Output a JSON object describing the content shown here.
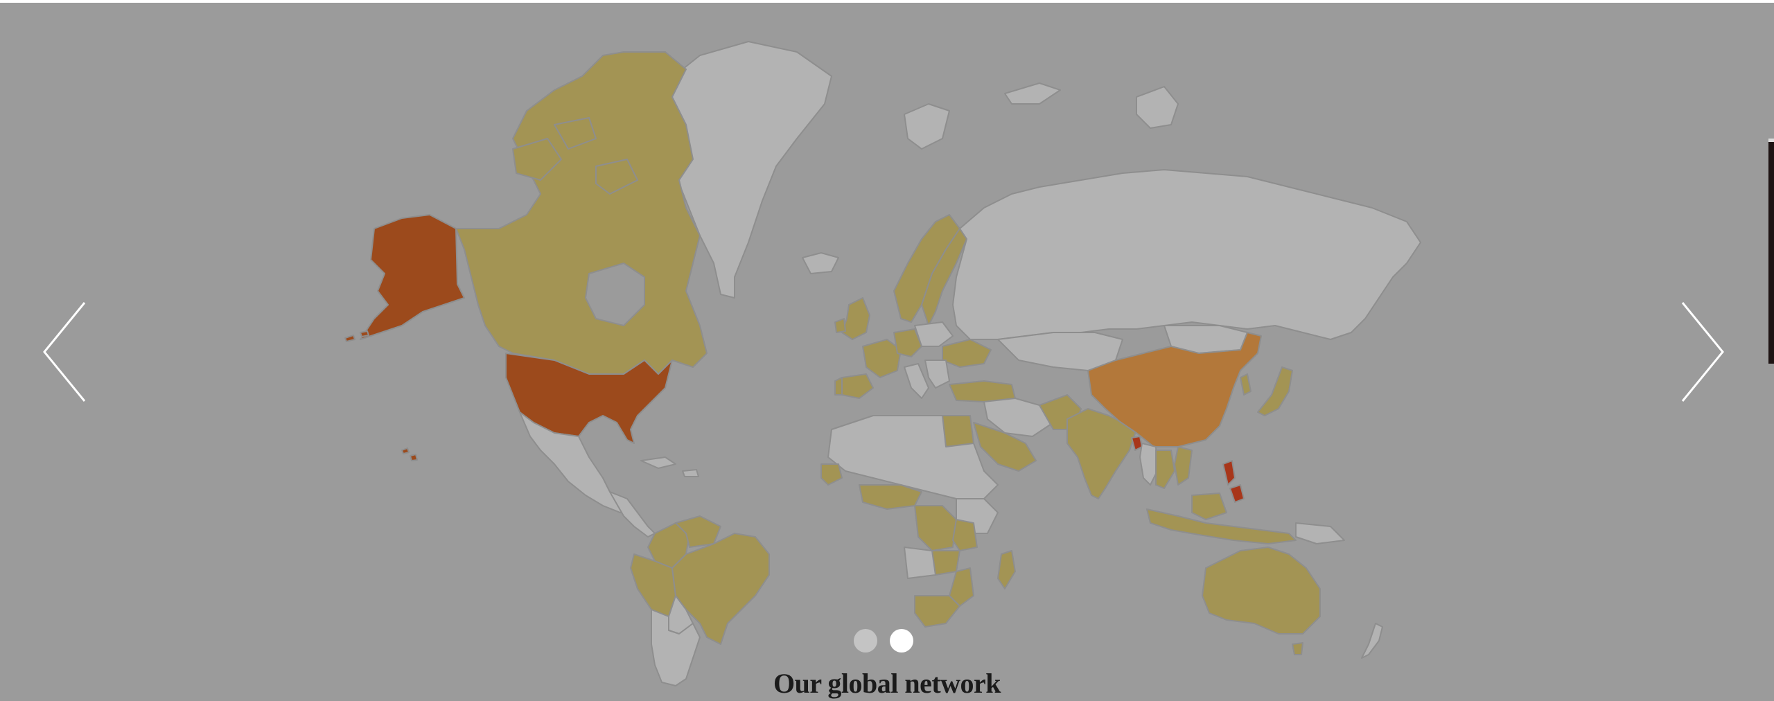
{
  "slider": {
    "caption": "Our global network",
    "active_slide": 2,
    "slide_count": 2
  },
  "map": {
    "legend_colors": {
      "background": "#9b9b9b",
      "land_default": "#b3b3b3",
      "border": "#8e8e8e",
      "tier_low": "#a39454",
      "tier_mid": "#b3783a",
      "tier_high": "#9c4a1c",
      "tier_top": "#a8361a"
    },
    "highlighted": [
      {
        "name": "United States",
        "tier": "high"
      },
      {
        "name": "Canada",
        "tier": "low"
      },
      {
        "name": "China",
        "tier": "mid"
      },
      {
        "name": "Philippines",
        "tier": "top"
      },
      {
        "name": "Bangladesh",
        "tier": "top"
      },
      {
        "name": "India",
        "tier": "low"
      },
      {
        "name": "Brazil",
        "tier": "low"
      },
      {
        "name": "Australia",
        "tier": "low"
      },
      {
        "name": "Japan",
        "tier": "low"
      },
      {
        "name": "United Kingdom",
        "tier": "low"
      },
      {
        "name": "Norway",
        "tier": "low"
      },
      {
        "name": "Sweden",
        "tier": "low"
      },
      {
        "name": "Finland",
        "tier": "low"
      },
      {
        "name": "France",
        "tier": "low"
      },
      {
        "name": "Spain",
        "tier": "low"
      },
      {
        "name": "Germany",
        "tier": "low"
      },
      {
        "name": "Ukraine",
        "tier": "low"
      },
      {
        "name": "Turkey",
        "tier": "low"
      },
      {
        "name": "Egypt",
        "tier": "low"
      },
      {
        "name": "Saudi Arabia",
        "tier": "low"
      },
      {
        "name": "Pakistan",
        "tier": "low"
      },
      {
        "name": "Thailand",
        "tier": "low"
      },
      {
        "name": "Vietnam",
        "tier": "low"
      },
      {
        "name": "Indonesia",
        "tier": "low"
      },
      {
        "name": "Colombia",
        "tier": "low"
      },
      {
        "name": "Peru",
        "tier": "low"
      },
      {
        "name": "Madagascar",
        "tier": "low"
      },
      {
        "name": "Zambia",
        "tier": "low"
      },
      {
        "name": "Mozambique",
        "tier": "low"
      },
      {
        "name": "Democratic Republic of the Congo",
        "tier": "low"
      },
      {
        "name": "Tanzania",
        "tier": "low"
      },
      {
        "name": "Ghana",
        "tier": "low"
      },
      {
        "name": "Nigeria",
        "tier": "low"
      },
      {
        "name": "Senegal",
        "tier": "low"
      },
      {
        "name": "South Africa",
        "tier": "low"
      },
      {
        "name": "Zimbabwe",
        "tier": "low"
      },
      {
        "name": "Kenya",
        "tier": "low"
      },
      {
        "name": "South Korea",
        "tier": "low"
      }
    ]
  },
  "controls": {
    "prev_icon": "chevron-left-icon",
    "next_icon": "chevron-right-icon",
    "arrow_color": "#ffffff",
    "dot_inactive_color": "#c4c4c4",
    "dot_active_color": "#ffffff"
  }
}
